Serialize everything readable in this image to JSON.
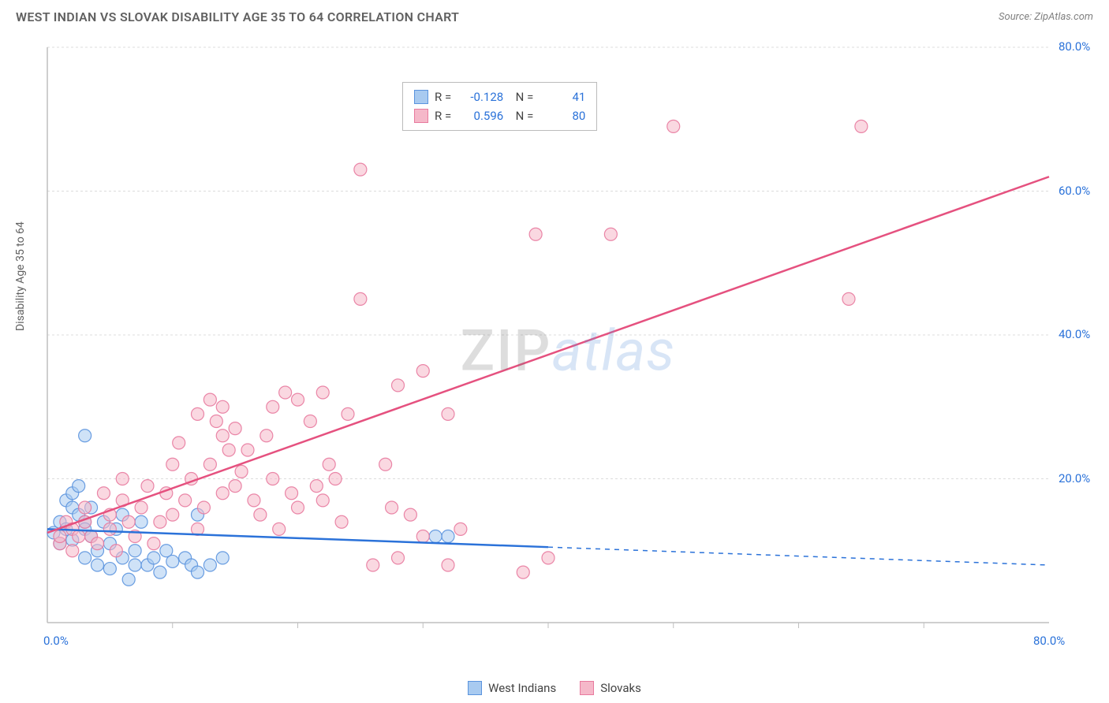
{
  "header": {
    "title": "WEST INDIAN VS SLOVAK DISABILITY AGE 35 TO 64 CORRELATION CHART",
    "source": "Source: ZipAtlas.com"
  },
  "ylabel": "Disability Age 35 to 64",
  "watermark": {
    "left": "ZIP",
    "right": "atlas"
  },
  "chart": {
    "type": "scatter",
    "xlim": [
      0,
      80
    ],
    "ylim": [
      0,
      80
    ],
    "xtick_labels": [
      "0.0%",
      "80.0%"
    ],
    "xtick_positions": [
      0,
      80
    ],
    "xtick_minor": [
      10,
      20,
      30,
      40,
      50,
      60,
      70
    ],
    "ytick_labels": [
      "20.0%",
      "40.0%",
      "60.0%",
      "80.0%"
    ],
    "ytick_positions": [
      20,
      40,
      60,
      80
    ],
    "grid_color": "#dcdcdc",
    "axis_color": "#bfbfbf",
    "background_color": "#ffffff",
    "marker_radius": 8,
    "marker_opacity": 0.55,
    "marker_stroke_opacity": 0.9,
    "line_width": 2.5,
    "series": [
      {
        "name": "West Indians",
        "color_fill": "#a8caf0",
        "color_stroke": "#5b94de",
        "line_color": "#2b72d9",
        "R": "-0.128",
        "N": "41",
        "trend": {
          "x1": 0,
          "y1": 13.0,
          "x2": 40,
          "y2": 10.5,
          "x_extend": 80,
          "y_extend": 8.0
        },
        "points": [
          [
            0.5,
            12.5
          ],
          [
            1,
            11
          ],
          [
            1,
            14
          ],
          [
            1.5,
            13
          ],
          [
            1.5,
            17
          ],
          [
            2,
            11.5
          ],
          [
            2,
            16
          ],
          [
            2,
            18
          ],
          [
            2.5,
            15
          ],
          [
            2.5,
            19
          ],
          [
            3,
            14
          ],
          [
            3,
            13
          ],
          [
            3,
            9
          ],
          [
            3.5,
            12
          ],
          [
            3.5,
            16
          ],
          [
            4,
            8
          ],
          [
            4,
            10
          ],
          [
            4.5,
            14
          ],
          [
            5,
            11
          ],
          [
            5,
            7.5
          ],
          [
            5.5,
            13
          ],
          [
            6,
            9
          ],
          [
            6,
            15
          ],
          [
            6.5,
            6
          ],
          [
            7,
            8
          ],
          [
            7,
            10
          ],
          [
            7.5,
            14
          ],
          [
            8,
            8
          ],
          [
            8.5,
            9
          ],
          [
            9,
            7
          ],
          [
            9.5,
            10
          ],
          [
            10,
            8.5
          ],
          [
            11,
            9
          ],
          [
            11.5,
            8
          ],
          [
            12,
            7
          ],
          [
            12,
            15
          ],
          [
            13,
            8
          ],
          [
            14,
            9
          ],
          [
            3,
            26
          ],
          [
            31,
            12
          ],
          [
            32,
            12
          ]
        ]
      },
      {
        "name": "Slovaks",
        "color_fill": "#f5b8c9",
        "color_stroke": "#e87a9e",
        "line_color": "#e5517f",
        "R": "0.596",
        "N": "80",
        "trend": {
          "x1": 0,
          "y1": 12.5,
          "x2": 80,
          "y2": 62,
          "x_extend": 80,
          "y_extend": 62
        },
        "points": [
          [
            1,
            11
          ],
          [
            1,
            12
          ],
          [
            1.5,
            14
          ],
          [
            2,
            13
          ],
          [
            2,
            10
          ],
          [
            2.5,
            12
          ],
          [
            3,
            14
          ],
          [
            3,
            16
          ],
          [
            3.5,
            12
          ],
          [
            4,
            11
          ],
          [
            4.5,
            18
          ],
          [
            5,
            13
          ],
          [
            5,
            15
          ],
          [
            5.5,
            10
          ],
          [
            6,
            17
          ],
          [
            6,
            20
          ],
          [
            6.5,
            14
          ],
          [
            7,
            12
          ],
          [
            7.5,
            16
          ],
          [
            8,
            19
          ],
          [
            8.5,
            11
          ],
          [
            9,
            14
          ],
          [
            9.5,
            18
          ],
          [
            10,
            22
          ],
          [
            10,
            15
          ],
          [
            10.5,
            25
          ],
          [
            11,
            17
          ],
          [
            11.5,
            20
          ],
          [
            12,
            29
          ],
          [
            12,
            13
          ],
          [
            12.5,
            16
          ],
          [
            13,
            31
          ],
          [
            13,
            22
          ],
          [
            13.5,
            28
          ],
          [
            14,
            30
          ],
          [
            14,
            18
          ],
          [
            14,
            26
          ],
          [
            14.5,
            24
          ],
          [
            15,
            27
          ],
          [
            15,
            19
          ],
          [
            15.5,
            21
          ],
          [
            16,
            24
          ],
          [
            16.5,
            17
          ],
          [
            17,
            15
          ],
          [
            17.5,
            26
          ],
          [
            18,
            20
          ],
          [
            18,
            30
          ],
          [
            18.5,
            13
          ],
          [
            19,
            32
          ],
          [
            19.5,
            18
          ],
          [
            20,
            31
          ],
          [
            20,
            16
          ],
          [
            21,
            28
          ],
          [
            21.5,
            19
          ],
          [
            22,
            32
          ],
          [
            22,
            17
          ],
          [
            22.5,
            22
          ],
          [
            23,
            20
          ],
          [
            23.5,
            14
          ],
          [
            24,
            29
          ],
          [
            25,
            45
          ],
          [
            25,
            63
          ],
          [
            26,
            8
          ],
          [
            27,
            22
          ],
          [
            27.5,
            16
          ],
          [
            28,
            33
          ],
          [
            28,
            9
          ],
          [
            29,
            15
          ],
          [
            30,
            35
          ],
          [
            30,
            12
          ],
          [
            32,
            29
          ],
          [
            32,
            8
          ],
          [
            33,
            13
          ],
          [
            38,
            7
          ],
          [
            39,
            54
          ],
          [
            40,
            9
          ],
          [
            45,
            54
          ],
          [
            50,
            69
          ],
          [
            64,
            45
          ],
          [
            65,
            69
          ]
        ]
      }
    ]
  },
  "legend": {
    "items": [
      {
        "label": "West Indians",
        "fill": "#a8caf0",
        "stroke": "#5b94de"
      },
      {
        "label": "Slovaks",
        "fill": "#f5b8c9",
        "stroke": "#e87a9e"
      }
    ]
  }
}
